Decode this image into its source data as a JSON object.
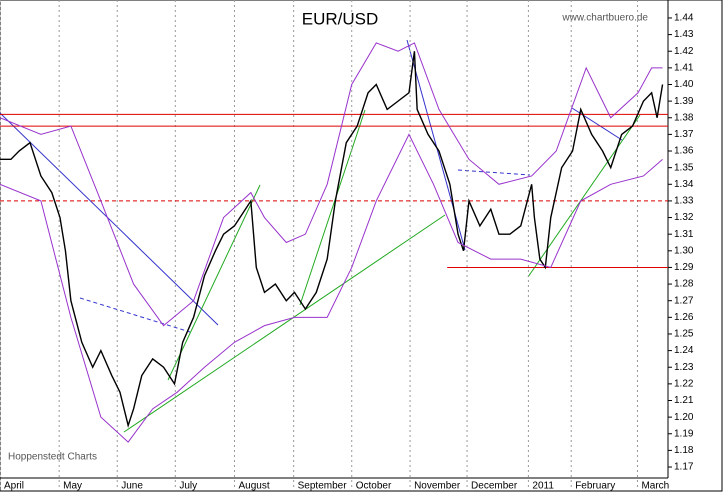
{
  "chart_data": {
    "type": "line",
    "title": "EUR/USD",
    "source": "www.chartbuero.de",
    "credit": "Hoppenstedt Charts",
    "xlim": [
      0,
      245
    ],
    "ylim": [
      1.1634,
      1.4508
    ],
    "xticks": [
      {
        "value": 0,
        "label": "April"
      },
      {
        "value": 21.7,
        "label": "May"
      },
      {
        "value": 43,
        "label": "June"
      },
      {
        "value": 64.3,
        "label": "July"
      },
      {
        "value": 86,
        "label": "August"
      },
      {
        "value": 107.7,
        "label": "September"
      },
      {
        "value": 129,
        "label": "October"
      },
      {
        "value": 150.4,
        "label": "November"
      },
      {
        "value": 171.3,
        "label": "December"
      },
      {
        "value": 193.8,
        "label": "2011"
      },
      {
        "value": 209.5,
        "label": "February"
      },
      {
        "value": 233.8,
        "label": "March"
      }
    ],
    "yticks": [
      1.17,
      1.18,
      1.19,
      {
        "value": 1.2,
        "label": "1.20"
      },
      1.21,
      1.22,
      1.23,
      1.24,
      1.25,
      1.26,
      1.27,
      1.28,
      1.29,
      {
        "value": 1.3,
        "label": "1.30"
      },
      1.31,
      1.32,
      1.33,
      1.34,
      1.35,
      1.36,
      1.37,
      1.38,
      1.39,
      {
        "value": 1.4,
        "label": "1.40"
      },
      1.41,
      1.42,
      1.43,
      1.44
    ],
    "series": [
      {
        "color": "#000000",
        "x": [
          0,
          4,
          7,
          11,
          15,
          19,
          22,
          24,
          26,
          30,
          34,
          37,
          41,
          44,
          47,
          49,
          52,
          56,
          60,
          64,
          67,
          71,
          75,
          79,
          82,
          86,
          90,
          92,
          94,
          97,
          101,
          105,
          108,
          112,
          116,
          120,
          123,
          127,
          131,
          135,
          138,
          142,
          146,
          150,
          152,
          153,
          157,
          161,
          165,
          168,
          170,
          172,
          176,
          180,
          183,
          187,
          191,
          195,
          196,
          198,
          200,
          202,
          206,
          210,
          213,
          217,
          221,
          224,
          228,
          232,
          236,
          239,
          241,
          243
        ],
        "values": [
          1.355,
          1.355,
          1.36,
          1.365,
          1.345,
          1.335,
          1.32,
          1.3,
          1.27,
          1.245,
          1.23,
          1.24,
          1.225,
          1.215,
          1.195,
          1.205,
          1.225,
          1.235,
          1.23,
          1.22,
          1.245,
          1.26,
          1.285,
          1.3,
          1.31,
          1.315,
          1.325,
          1.33,
          1.29,
          1.275,
          1.28,
          1.27,
          1.275,
          1.265,
          1.275,
          1.295,
          1.33,
          1.365,
          1.375,
          1.395,
          1.4,
          1.385,
          1.39,
          1.395,
          1.42,
          1.385,
          1.37,
          1.36,
          1.34,
          1.31,
          1.3,
          1.33,
          1.315,
          1.325,
          1.31,
          1.31,
          1.315,
          1.34,
          1.32,
          1.295,
          1.29,
          1.32,
          1.35,
          1.36,
          1.385,
          1.37,
          1.36,
          1.35,
          1.37,
          1.375,
          1.39,
          1.395,
          1.38,
          1.4
        ]
      },
      {
        "color": "#9933cc",
        "x": [
          0,
          15,
          26,
          37,
          49,
          60,
          71,
          82,
          92,
          97,
          105,
          112,
          120,
          129,
          138,
          146,
          152,
          161,
          172,
          183,
          195,
          204,
          215,
          224,
          234,
          239,
          243
        ],
        "values": [
          1.38,
          1.37,
          1.375,
          1.33,
          1.28,
          1.255,
          1.27,
          1.32,
          1.335,
          1.32,
          1.305,
          1.31,
          1.34,
          1.4,
          1.425,
          1.42,
          1.425,
          1.385,
          1.355,
          1.34,
          1.345,
          1.36,
          1.41,
          1.38,
          1.395,
          1.41,
          1.41
        ]
      },
      {
        "color": "#9933cc",
        "x": [
          0,
          15,
          26,
          37,
          47,
          56,
          65,
          75,
          86,
          97,
          108,
          120,
          129,
          138,
          150,
          159,
          168,
          180,
          191,
          202,
          213,
          224,
          236,
          243
        ],
        "values": [
          1.34,
          1.33,
          1.26,
          1.2,
          1.185,
          1.205,
          1.215,
          1.23,
          1.245,
          1.255,
          1.26,
          1.26,
          1.29,
          1.33,
          1.37,
          1.34,
          1.305,
          1.295,
          1.295,
          1.29,
          1.33,
          1.34,
          1.345,
          1.355
        ]
      }
    ],
    "hlines": [
      {
        "value": 1.382,
        "color": "#dd0000"
      },
      {
        "value": 1.375,
        "color": "#dd0000"
      },
      {
        "value": 1.33,
        "color": "#dd0000",
        "dashed": true
      },
      {
        "value": 1.29,
        "color": "#dd0000",
        "from": 164
      }
    ]
  }
}
